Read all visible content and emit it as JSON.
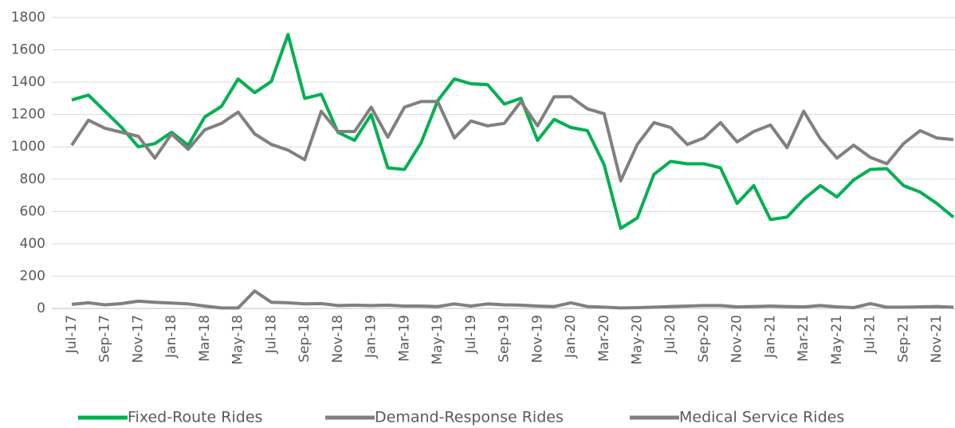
{
  "chart_data": {
    "type": "line",
    "categories": [
      "Jul-17",
      null,
      "Sep-17",
      null,
      "Nov-17",
      null,
      "Jan-18",
      null,
      "Mar-18",
      null,
      "May-18",
      null,
      "Jul-18",
      null,
      "Sep-18",
      null,
      "Nov-18",
      null,
      "Jan-19",
      null,
      "Mar-19",
      null,
      "May-19",
      null,
      "Jul-19",
      null,
      "Sep-19",
      null,
      "Nov-19",
      null,
      "Jan-20",
      null,
      "Mar-20",
      null,
      "May-20",
      null,
      "Jul-20",
      null,
      "Sep-20",
      null,
      "Nov-20",
      null,
      "Jan-21",
      null,
      "Mar-21",
      null,
      "May-21",
      null,
      "Jul-21",
      null,
      "Sep-21",
      null,
      "Nov-21",
      null
    ],
    "series": [
      {
        "name": "Fixed-Route Rides",
        "color": "#00b050",
        "values": [
          1290,
          1320,
          1220,
          1120,
          1000,
          1020,
          1090,
          1010,
          1185,
          1250,
          1420,
          1335,
          1405,
          1695,
          1300,
          1325,
          1090,
          1040,
          1200,
          870,
          860,
          1025,
          1285,
          1420,
          1390,
          1385,
          1265,
          1300,
          1040,
          1170,
          1120,
          1100,
          890,
          495,
          560,
          830,
          910,
          895,
          895,
          870,
          650,
          760,
          550,
          565,
          675,
          760,
          690,
          795,
          860,
          865,
          760,
          720,
          650,
          565
        ]
      },
      {
        "name": "Demand-Response Rides",
        "color": "#808080",
        "values": [
          1010,
          1165,
          1115,
          1090,
          1065,
          930,
          1080,
          985,
          1105,
          1145,
          1215,
          1080,
          1015,
          980,
          920,
          1220,
          1095,
          1095,
          1245,
          1060,
          1245,
          1280,
          1280,
          1055,
          1160,
          1130,
          1145,
          1280,
          1130,
          1310,
          1310,
          1235,
          1205,
          790,
          1015,
          1150,
          1120,
          1015,
          1055,
          1150,
          1030,
          1095,
          1135,
          995,
          1220,
          1050,
          930,
          1010,
          935,
          895,
          1020,
          1100,
          1055,
          1045
        ]
      },
      {
        "name": "Medical Service Rides",
        "color": "#808080",
        "values": [
          25,
          35,
          22,
          30,
          45,
          38,
          33,
          28,
          15,
          3,
          3,
          108,
          38,
          35,
          28,
          30,
          18,
          20,
          18,
          20,
          15,
          15,
          12,
          28,
          15,
          28,
          22,
          20,
          15,
          12,
          35,
          12,
          8,
          3,
          5,
          8,
          12,
          15,
          18,
          18,
          10,
          12,
          15,
          12,
          10,
          18,
          10,
          5,
          30,
          8,
          8,
          10,
          12,
          8
        ]
      }
    ],
    "ylim": [
      0,
      1800
    ],
    "yticks": [
      0,
      200,
      400,
      600,
      800,
      1000,
      1200,
      1400,
      1600,
      1800
    ],
    "grid": true,
    "legend": "bottom"
  }
}
